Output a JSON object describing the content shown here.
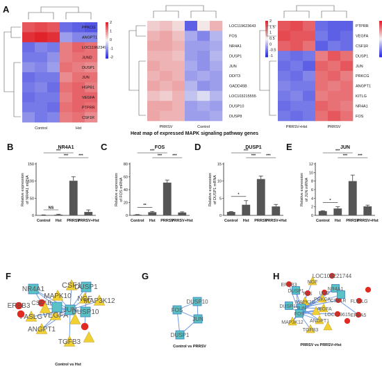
{
  "panel_labels": [
    "A",
    "B",
    "C",
    "D",
    "E",
    "F",
    "G",
    "H"
  ],
  "heatmap_caption": "Heat map of expressed MAPK signaling pathway genes",
  "heatmaps": [
    {
      "rows": [
        "PPKCG",
        "ANGPT1",
        "LOC119623494",
        "JUND",
        "DUSP1",
        "JUN",
        "HSPB1",
        "VEGFA",
        "PTPRR",
        "CSF1R"
      ],
      "groups": [
        "Control",
        "Hst"
      ],
      "scale_ticks": [
        "2",
        "1",
        "0",
        "-1",
        "-2"
      ],
      "values": [
        [
          1.2,
          1.3,
          1.2,
          -1.1,
          -1.2,
          -1.3
        ],
        [
          1.5,
          1.6,
          1.5,
          -0.7,
          -0.9,
          -0.9
        ],
        [
          -1.1,
          -0.9,
          -1.0,
          0.9,
          1.1,
          1.0
        ],
        [
          -1.0,
          -1.0,
          -0.8,
          0.9,
          1.0,
          1.0
        ],
        [
          -0.8,
          -0.9,
          -0.7,
          1.0,
          0.9,
          0.8
        ],
        [
          -1.1,
          -1.0,
          -1.0,
          0.8,
          1.0,
          1.0
        ],
        [
          -1.0,
          -0.9,
          -1.1,
          1.0,
          1.1,
          0.9
        ],
        [
          -1.1,
          -1.0,
          -1.0,
          0.9,
          1.1,
          1.1
        ],
        [
          -1.0,
          -1.0,
          -1.1,
          1.0,
          1.1,
          1.0
        ],
        [
          -0.8,
          -1.0,
          -0.9,
          0.9,
          1.0,
          0.8
        ]
      ]
    },
    {
      "rows": [
        "LOC119623643",
        "FOS",
        "NR4A1",
        "DUSP1",
        "JUN",
        "DDIT3",
        "GADD45B",
        "LOC103215555",
        "DUSP10",
        "DUSP8"
      ],
      "groups": [
        "PRRSV",
        "Control"
      ],
      "scale_ticks": [
        "2",
        "1.5",
        "1",
        "0.5",
        "0",
        "-0.5",
        "-1"
      ],
      "values": [
        [
          0.3,
          0.4,
          0.2,
          -1.2,
          0.1,
          0.5
        ],
        [
          0.5,
          0.6,
          0.4,
          -0.6,
          -0.9,
          -0.5
        ],
        [
          0.6,
          0.6,
          0.5,
          -0.7,
          -0.7,
          -0.6
        ],
        [
          0.5,
          0.5,
          0.4,
          -0.7,
          -0.8,
          -0.5
        ],
        [
          0.6,
          0.5,
          0.5,
          -0.6,
          -0.8,
          -0.6
        ],
        [
          0.5,
          0.6,
          0.5,
          -0.7,
          -0.6,
          -0.7
        ],
        [
          0.6,
          0.5,
          0.6,
          -0.5,
          -0.8,
          -0.7
        ],
        [
          0.4,
          0.3,
          0.5,
          -0.4,
          -0.2,
          -0.5
        ],
        [
          0.6,
          0.6,
          0.5,
          -0.7,
          -0.6,
          -0.7
        ],
        [
          0.6,
          0.5,
          0.5,
          -0.7,
          -0.7,
          -0.6
        ]
      ]
    },
    {
      "rows": [
        "PTPRR",
        "VEGFA",
        "CSF1R",
        "DUSP1",
        "JUN",
        "PRKCG",
        "ANGPT1",
        "KITLG",
        "NR4A1",
        "FOS"
      ],
      "groups": [
        "PRRSV+Hst",
        "PRRSV"
      ],
      "scale_ticks": [
        "2",
        "1",
        "0",
        "-1",
        "-2"
      ],
      "values": [
        [
          1.2,
          1.3,
          1.1,
          -1.1,
          -1.2,
          -1.2
        ],
        [
          1.3,
          1.2,
          1.2,
          -1.0,
          -1.2,
          -1.1
        ],
        [
          1.1,
          1.2,
          1.0,
          -1.2,
          -1.0,
          -1.1
        ],
        [
          -1.0,
          -1.1,
          -1.0,
          0.9,
          1.2,
          1.0
        ],
        [
          -1.1,
          -1.0,
          -1.2,
          1.1,
          1.0,
          1.2
        ],
        [
          -1.0,
          -1.1,
          -0.9,
          1.0,
          1.1,
          0.9
        ],
        [
          -0.9,
          -1.0,
          -1.0,
          1.0,
          0.9,
          1.0
        ],
        [
          -1.0,
          -0.9,
          -1.1,
          0.9,
          1.0,
          1.0
        ],
        [
          -1.1,
          -1.0,
          -1.0,
          1.1,
          1.0,
          0.9
        ],
        [
          -1.0,
          -1.1,
          -1.0,
          1.0,
          1.2,
          1.0
        ]
      ]
    }
  ],
  "chart_data": [
    {
      "type": "bar",
      "title": "NR4A1",
      "ylabel": "Relative expression\nof NR4A1 mRNA",
      "categories": [
        "Control",
        "Hst",
        "PRRSV",
        "PRRSV+Hst"
      ],
      "values": [
        1,
        2,
        101,
        10
      ],
      "errors": [
        0.5,
        1.5,
        12,
        6
      ],
      "ylim": [
        0,
        150
      ],
      "yticks": [
        "0",
        "50",
        "100",
        "150"
      ],
      "sig": [
        {
          "a": 0,
          "b": 1,
          "label": "NS"
        },
        {
          "a": 0,
          "b": 2,
          "label": "***"
        },
        {
          "a": 1,
          "b": 2,
          "label": "***"
        },
        {
          "a": 2,
          "b": 3,
          "label": "***"
        }
      ]
    },
    {
      "type": "bar",
      "title": "FOS",
      "ylabel": "Relative expression\nof FOS mRNA",
      "categories": [
        "Control",
        "Hst",
        "PRRSV",
        "PRRSV+Hst"
      ],
      "values": [
        1,
        5,
        51,
        4.5
      ],
      "errors": [
        0.3,
        1.2,
        4,
        1
      ],
      "ylim": [
        0,
        80
      ],
      "yticks": [
        "0",
        "20",
        "40",
        "60",
        "80"
      ],
      "sig": [
        {
          "a": 0,
          "b": 1,
          "label": "**"
        },
        {
          "a": 0,
          "b": 2,
          "label": "***"
        },
        {
          "a": 1,
          "b": 2,
          "label": "***"
        },
        {
          "a": 2,
          "b": 3,
          "label": "***"
        }
      ]
    },
    {
      "type": "bar",
      "title": "DUSP1",
      "ylabel": "Relative expression\nof DUSP1 mRNA",
      "categories": [
        "Control",
        "Hst",
        "PRRSV",
        "PRRSV+Hst"
      ],
      "values": [
        1,
        3.1,
        10.6,
        2.6
      ],
      "errors": [
        0.1,
        1.2,
        0.9,
        0.6
      ],
      "ylim": [
        0,
        15
      ],
      "yticks": [
        "0",
        "5",
        "10",
        "15"
      ],
      "sig": [
        {
          "a": 0,
          "b": 1,
          "label": "*"
        },
        {
          "a": 0,
          "b": 2,
          "label": "***"
        },
        {
          "a": 1,
          "b": 2,
          "label": "***"
        },
        {
          "a": 2,
          "b": 3,
          "label": "***"
        }
      ]
    },
    {
      "type": "bar",
      "title": "JUN",
      "ylabel": "Relative expression\nof JUN mRNA",
      "categories": [
        "Control",
        "Hst",
        "PRRSV",
        "PRRSV+Hst"
      ],
      "values": [
        1,
        1.6,
        8,
        2.1
      ],
      "errors": [
        0.1,
        0.4,
        1.4,
        0.3
      ],
      "ylim": [
        0,
        12
      ],
      "yticks": [
        "0",
        "2",
        "4",
        "6",
        "8",
        "10",
        "12"
      ],
      "sig": [
        {
          "a": 0,
          "b": 1,
          "label": "*"
        },
        {
          "a": 0,
          "b": 2,
          "label": "***"
        },
        {
          "a": 1,
          "b": 2,
          "label": "***"
        },
        {
          "a": 2,
          "b": 3,
          "label": "***"
        }
      ]
    }
  ],
  "networks": [
    {
      "caption": "Control vs Hst",
      "nodes": [
        {
          "label": "NR4A1",
          "shape": "square"
        },
        {
          "label": "CSF1",
          "shape": "triangle"
        },
        {
          "label": "DUSP1",
          "shape": "square"
        },
        {
          "label": "ERBB3",
          "shape": "circle"
        },
        {
          "label": "CSF1R",
          "shape": "circle"
        },
        {
          "label": "MAPK10",
          "shape": "triangle"
        },
        {
          "label": "NGF",
          "shape": "triangle"
        },
        {
          "label": "MAP3K12",
          "shape": "triangle"
        },
        {
          "label": "FASLG",
          "shape": "triangle"
        },
        {
          "label": "VEGFA",
          "shape": "triangle"
        },
        {
          "label": "JUN",
          "shape": "square"
        },
        {
          "label": "DUSP10",
          "shape": "square"
        },
        {
          "label": "ANGPT1",
          "shape": "triangle"
        },
        {
          "label": "TGFB3",
          "shape": "triangle"
        },
        {
          "label": "",
          "shape": "square"
        },
        {
          "label": "",
          "shape": "circle"
        },
        {
          "label": "",
          "shape": "circle"
        },
        {
          "label": "",
          "shape": "triangle"
        },
        {
          "label": "",
          "shape": "triangle"
        },
        {
          "label": "",
          "shape": "triangle"
        }
      ]
    },
    {
      "caption": "Control vs PRRSV",
      "nodes": [
        {
          "label": "DUSP10",
          "shape": "square"
        },
        {
          "label": "FOS",
          "shape": "square"
        },
        {
          "label": "JUN",
          "shape": "square"
        },
        {
          "label": "DUSP1",
          "shape": "square"
        }
      ]
    },
    {
      "caption": "PRRSV vs PRRSV+Hst",
      "nodes": [
        {
          "label": "LOC103221744",
          "shape": "circle"
        },
        {
          "label": "ERBB3",
          "shape": "circle"
        },
        {
          "label": "NGF",
          "shape": "triangle"
        },
        {
          "label": "NR4A1",
          "shape": "square"
        },
        {
          "label": "DUSP1",
          "shape": "square"
        },
        {
          "label": "FAS",
          "shape": "circle"
        },
        {
          "label": "LOC",
          "shape": "circle"
        },
        {
          "label": "PRKCA",
          "shape": "triangle"
        },
        {
          "label": "CSF1R",
          "shape": "circle"
        },
        {
          "label": "FLT3LG",
          "shape": "circle"
        },
        {
          "label": "MAPK10",
          "shape": "triangle"
        },
        {
          "label": "DUSP10",
          "shape": "square"
        },
        {
          "label": "JUN",
          "shape": "square"
        },
        {
          "label": "VEGFA",
          "shape": "triangle"
        },
        {
          "label": "EFNA5",
          "shape": "circle"
        },
        {
          "label": "FOS",
          "shape": "square"
        },
        {
          "label": "LOC119615",
          "shape": "circle"
        },
        {
          "label": "MAP3K12",
          "shape": "triangle"
        },
        {
          "label": "ANGPT1",
          "shape": "triangle"
        },
        {
          "label": "TGFB3",
          "shape": "triangle"
        },
        {
          "label": "",
          "shape": "square"
        },
        {
          "label": "",
          "shape": "circle"
        },
        {
          "label": "",
          "shape": "circle"
        },
        {
          "label": "",
          "shape": "triangle"
        },
        {
          "label": "",
          "shape": "triangle"
        }
      ]
    }
  ],
  "colors": {
    "bar": "#555555",
    "heat_low": "#2b2fe0",
    "heat_mid": "#f4f4f4",
    "heat_high": "#e0232a",
    "node_square": "#59c2c6",
    "node_triangle": "#f0d032",
    "node_circle": "#e02a22",
    "edge": "#4a7fe0"
  }
}
